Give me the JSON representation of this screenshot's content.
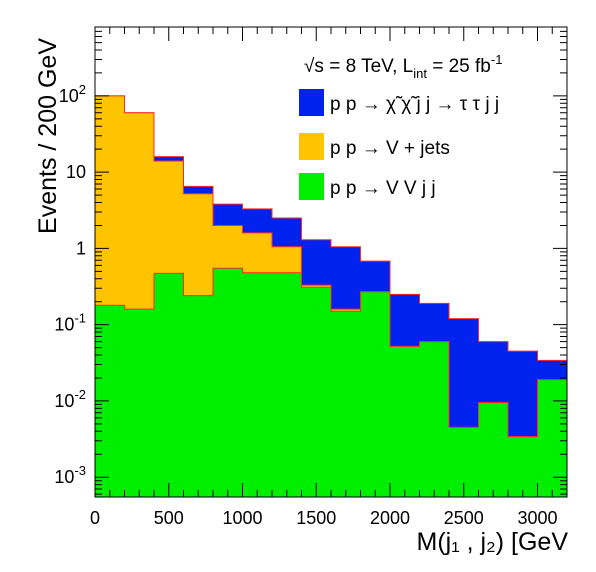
{
  "chart_data": {
    "type": "area",
    "title": "",
    "xlabel": "M(j₁ , j₂) [GeV",
    "ylabel": "Events / 200 GeV",
    "xlim": [
      0,
      3200
    ],
    "ylim": [
      0.00055,
      800
    ],
    "yscale": "log",
    "stacked": true,
    "bin_width": 200,
    "bin_edges": [
      0,
      200,
      400,
      600,
      800,
      1000,
      1200,
      1400,
      1600,
      1800,
      2000,
      2200,
      2400,
      2600,
      2800,
      3000,
      3200
    ],
    "x_ticks": [
      0,
      500,
      1000,
      1500,
      2000,
      2500,
      3000
    ],
    "x_tick_labels": [
      "0",
      "500",
      "1000",
      "1500",
      "2000",
      "2500",
      "3000"
    ],
    "y_ticks": [
      0.001,
      0.01,
      0.1,
      1,
      10,
      100
    ],
    "y_tick_labels": [
      "10^-3",
      "10^-2",
      "10^-1",
      "1",
      "10",
      "10^2"
    ],
    "annotation": "√s = 8 TeV, L_int = 25 fb^-1",
    "legend_position": "top-right",
    "series": [
      {
        "name": "p p → χ̃ χ̃ j j → τ τ j j",
        "color": "#0022ee",
        "stack_totals": [
          100,
          60,
          16,
          6.5,
          3.8,
          3.3,
          2.5,
          1.3,
          1.05,
          0.68,
          0.25,
          0.19,
          0.12,
          0.06,
          0.045,
          0.034
        ]
      },
      {
        "name": "p p → V + jets",
        "color": "#ffc400",
        "stack_totals": [
          100,
          60,
          14,
          5.2,
          2.0,
          1.6,
          1.05,
          0.33,
          0.16,
          0.27,
          0.052,
          0.06,
          0.0045,
          0.0095,
          0.0034,
          0.019
        ]
      },
      {
        "name": "p p → V V j j",
        "color": "#00ee00",
        "stack_totals": [
          0.18,
          0.16,
          0.47,
          0.24,
          0.55,
          0.48,
          0.48,
          0.31,
          0.15,
          0.27,
          0.052,
          0.06,
          0.0045,
          0.0095,
          0.0034,
          0.019
        ]
      }
    ]
  }
}
